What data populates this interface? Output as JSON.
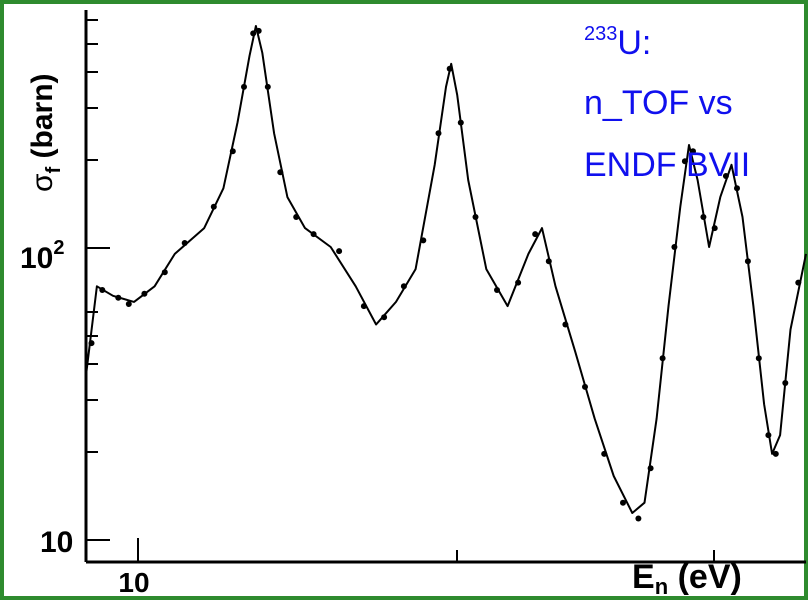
{
  "colors": {
    "border": "#2e8b2e",
    "curve": "#000000",
    "points": "#000000",
    "annotation": "#1010ee"
  },
  "chart_data": {
    "type": "line",
    "title": "",
    "annotation": {
      "isotope_mass": "233",
      "element": "U:",
      "line2": "n_TOF vs",
      "line3": "ENDF BVII"
    },
    "xlabel": {
      "main": "E",
      "sub": "n",
      "unit": " (eV)"
    },
    "ylabel": {
      "main": "σ",
      "sub": "f",
      "unit": " (barn)"
    },
    "x_scale": "log",
    "y_scale": "log",
    "xlim": [
      8.65,
      18.5
    ],
    "ylim": [
      8.2,
      600
    ],
    "x_ticks": [
      {
        "value": 10,
        "label": "10"
      }
    ],
    "y_ticks": [
      {
        "value": 10,
        "base": "10",
        "exp": ""
      },
      {
        "value": 100,
        "base": "10",
        "exp": "2"
      }
    ],
    "grid": false,
    "legend": "none",
    "series": [
      {
        "style": "line",
        "values": [
          [
            8.65,
            35
          ],
          [
            8.75,
            70
          ],
          [
            8.9,
            65
          ],
          [
            9.1,
            62
          ],
          [
            9.3,
            70
          ],
          [
            9.5,
            90
          ],
          [
            9.8,
            110
          ],
          [
            10.0,
            150
          ],
          [
            10.15,
            250
          ],
          [
            10.28,
            420
          ],
          [
            10.35,
            530
          ],
          [
            10.42,
            430
          ],
          [
            10.55,
            230
          ],
          [
            10.7,
            140
          ],
          [
            10.9,
            110
          ],
          [
            11.2,
            95
          ],
          [
            11.5,
            70
          ],
          [
            11.75,
            52
          ],
          [
            12.0,
            62
          ],
          [
            12.25,
            80
          ],
          [
            12.5,
            180
          ],
          [
            12.65,
            330
          ],
          [
            12.72,
            395
          ],
          [
            12.8,
            310
          ],
          [
            12.95,
            160
          ],
          [
            13.2,
            80
          ],
          [
            13.5,
            60
          ],
          [
            13.8,
            90
          ],
          [
            14.0,
            110
          ],
          [
            14.2,
            70
          ],
          [
            14.5,
            42
          ],
          [
            14.8,
            25
          ],
          [
            15.1,
            16
          ],
          [
            15.4,
            12
          ],
          [
            15.6,
            13
          ],
          [
            15.8,
            25
          ],
          [
            16.0,
            60
          ],
          [
            16.2,
            130
          ],
          [
            16.35,
            210
          ],
          [
            16.5,
            160
          ],
          [
            16.7,
            95
          ],
          [
            16.9,
            140
          ],
          [
            17.1,
            180
          ],
          [
            17.3,
            120
          ],
          [
            17.5,
            60
          ],
          [
            17.7,
            28
          ],
          [
            17.85,
            19
          ],
          [
            18.0,
            22
          ],
          [
            18.2,
            50
          ],
          [
            18.5,
            90
          ]
        ]
      },
      {
        "style": "points",
        "values": [
          [
            8.7,
            45
          ],
          [
            8.8,
            68
          ],
          [
            8.95,
            64
          ],
          [
            9.05,
            61
          ],
          [
            9.2,
            66
          ],
          [
            9.4,
            78
          ],
          [
            9.6,
            98
          ],
          [
            9.9,
            130
          ],
          [
            10.1,
            200
          ],
          [
            10.22,
            330
          ],
          [
            10.32,
            500
          ],
          [
            10.38,
            510
          ],
          [
            10.48,
            330
          ],
          [
            10.62,
            170
          ],
          [
            10.8,
            120
          ],
          [
            11.0,
            105
          ],
          [
            11.3,
            92
          ],
          [
            11.6,
            60
          ],
          [
            11.85,
            55
          ],
          [
            12.1,
            70
          ],
          [
            12.35,
            100
          ],
          [
            12.55,
            230
          ],
          [
            12.7,
            380
          ],
          [
            12.85,
            250
          ],
          [
            13.05,
            120
          ],
          [
            13.35,
            68
          ],
          [
            13.65,
            72
          ],
          [
            13.9,
            105
          ],
          [
            14.1,
            85
          ],
          [
            14.35,
            52
          ],
          [
            14.65,
            32
          ],
          [
            14.95,
            19
          ],
          [
            15.25,
            13
          ],
          [
            15.5,
            11.5
          ],
          [
            15.7,
            17
          ],
          [
            15.9,
            40
          ],
          [
            16.1,
            95
          ],
          [
            16.28,
            185
          ],
          [
            16.42,
            200
          ],
          [
            16.6,
            120
          ],
          [
            16.8,
            110
          ],
          [
            17.0,
            165
          ],
          [
            17.2,
            150
          ],
          [
            17.4,
            85
          ],
          [
            17.6,
            40
          ],
          [
            17.78,
            22
          ],
          [
            17.92,
            19
          ],
          [
            18.1,
            33
          ],
          [
            18.35,
            72
          ]
        ]
      }
    ]
  }
}
